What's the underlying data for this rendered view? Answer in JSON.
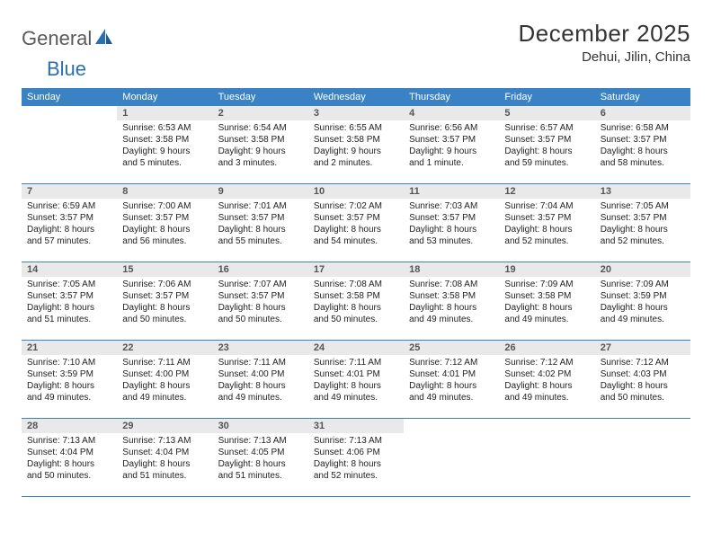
{
  "brand": {
    "text1": "General",
    "text2": "Blue"
  },
  "title": "December 2025",
  "location": "Dehui, Jilin, China",
  "colors": {
    "header_bg": "#3b82c4",
    "header_text": "#ffffff",
    "daynum_bg": "#e9e9e9",
    "daynum_text": "#555555",
    "body_text": "#222222",
    "rule": "#3b82c4",
    "logo_gray": "#5a5a5a",
    "logo_blue": "#2a6fb0"
  },
  "weekdays": [
    "Sunday",
    "Monday",
    "Tuesday",
    "Wednesday",
    "Thursday",
    "Friday",
    "Saturday"
  ],
  "weeks": [
    [
      {
        "n": "",
        "sr": "",
        "ss": "",
        "dl": ""
      },
      {
        "n": "1",
        "sr": "Sunrise: 6:53 AM",
        "ss": "Sunset: 3:58 PM",
        "dl": "Daylight: 9 hours and 5 minutes."
      },
      {
        "n": "2",
        "sr": "Sunrise: 6:54 AM",
        "ss": "Sunset: 3:58 PM",
        "dl": "Daylight: 9 hours and 3 minutes."
      },
      {
        "n": "3",
        "sr": "Sunrise: 6:55 AM",
        "ss": "Sunset: 3:58 PM",
        "dl": "Daylight: 9 hours and 2 minutes."
      },
      {
        "n": "4",
        "sr": "Sunrise: 6:56 AM",
        "ss": "Sunset: 3:57 PM",
        "dl": "Daylight: 9 hours and 1 minute."
      },
      {
        "n": "5",
        "sr": "Sunrise: 6:57 AM",
        "ss": "Sunset: 3:57 PM",
        "dl": "Daylight: 8 hours and 59 minutes."
      },
      {
        "n": "6",
        "sr": "Sunrise: 6:58 AM",
        "ss": "Sunset: 3:57 PM",
        "dl": "Daylight: 8 hours and 58 minutes."
      }
    ],
    [
      {
        "n": "7",
        "sr": "Sunrise: 6:59 AM",
        "ss": "Sunset: 3:57 PM",
        "dl": "Daylight: 8 hours and 57 minutes."
      },
      {
        "n": "8",
        "sr": "Sunrise: 7:00 AM",
        "ss": "Sunset: 3:57 PM",
        "dl": "Daylight: 8 hours and 56 minutes."
      },
      {
        "n": "9",
        "sr": "Sunrise: 7:01 AM",
        "ss": "Sunset: 3:57 PM",
        "dl": "Daylight: 8 hours and 55 minutes."
      },
      {
        "n": "10",
        "sr": "Sunrise: 7:02 AM",
        "ss": "Sunset: 3:57 PM",
        "dl": "Daylight: 8 hours and 54 minutes."
      },
      {
        "n": "11",
        "sr": "Sunrise: 7:03 AM",
        "ss": "Sunset: 3:57 PM",
        "dl": "Daylight: 8 hours and 53 minutes."
      },
      {
        "n": "12",
        "sr": "Sunrise: 7:04 AM",
        "ss": "Sunset: 3:57 PM",
        "dl": "Daylight: 8 hours and 52 minutes."
      },
      {
        "n": "13",
        "sr": "Sunrise: 7:05 AM",
        "ss": "Sunset: 3:57 PM",
        "dl": "Daylight: 8 hours and 52 minutes."
      }
    ],
    [
      {
        "n": "14",
        "sr": "Sunrise: 7:05 AM",
        "ss": "Sunset: 3:57 PM",
        "dl": "Daylight: 8 hours and 51 minutes."
      },
      {
        "n": "15",
        "sr": "Sunrise: 7:06 AM",
        "ss": "Sunset: 3:57 PM",
        "dl": "Daylight: 8 hours and 50 minutes."
      },
      {
        "n": "16",
        "sr": "Sunrise: 7:07 AM",
        "ss": "Sunset: 3:57 PM",
        "dl": "Daylight: 8 hours and 50 minutes."
      },
      {
        "n": "17",
        "sr": "Sunrise: 7:08 AM",
        "ss": "Sunset: 3:58 PM",
        "dl": "Daylight: 8 hours and 50 minutes."
      },
      {
        "n": "18",
        "sr": "Sunrise: 7:08 AM",
        "ss": "Sunset: 3:58 PM",
        "dl": "Daylight: 8 hours and 49 minutes."
      },
      {
        "n": "19",
        "sr": "Sunrise: 7:09 AM",
        "ss": "Sunset: 3:58 PM",
        "dl": "Daylight: 8 hours and 49 minutes."
      },
      {
        "n": "20",
        "sr": "Sunrise: 7:09 AM",
        "ss": "Sunset: 3:59 PM",
        "dl": "Daylight: 8 hours and 49 minutes."
      }
    ],
    [
      {
        "n": "21",
        "sr": "Sunrise: 7:10 AM",
        "ss": "Sunset: 3:59 PM",
        "dl": "Daylight: 8 hours and 49 minutes."
      },
      {
        "n": "22",
        "sr": "Sunrise: 7:11 AM",
        "ss": "Sunset: 4:00 PM",
        "dl": "Daylight: 8 hours and 49 minutes."
      },
      {
        "n": "23",
        "sr": "Sunrise: 7:11 AM",
        "ss": "Sunset: 4:00 PM",
        "dl": "Daylight: 8 hours and 49 minutes."
      },
      {
        "n": "24",
        "sr": "Sunrise: 7:11 AM",
        "ss": "Sunset: 4:01 PM",
        "dl": "Daylight: 8 hours and 49 minutes."
      },
      {
        "n": "25",
        "sr": "Sunrise: 7:12 AM",
        "ss": "Sunset: 4:01 PM",
        "dl": "Daylight: 8 hours and 49 minutes."
      },
      {
        "n": "26",
        "sr": "Sunrise: 7:12 AM",
        "ss": "Sunset: 4:02 PM",
        "dl": "Daylight: 8 hours and 49 minutes."
      },
      {
        "n": "27",
        "sr": "Sunrise: 7:12 AM",
        "ss": "Sunset: 4:03 PM",
        "dl": "Daylight: 8 hours and 50 minutes."
      }
    ],
    [
      {
        "n": "28",
        "sr": "Sunrise: 7:13 AM",
        "ss": "Sunset: 4:04 PM",
        "dl": "Daylight: 8 hours and 50 minutes."
      },
      {
        "n": "29",
        "sr": "Sunrise: 7:13 AM",
        "ss": "Sunset: 4:04 PM",
        "dl": "Daylight: 8 hours and 51 minutes."
      },
      {
        "n": "30",
        "sr": "Sunrise: 7:13 AM",
        "ss": "Sunset: 4:05 PM",
        "dl": "Daylight: 8 hours and 51 minutes."
      },
      {
        "n": "31",
        "sr": "Sunrise: 7:13 AM",
        "ss": "Sunset: 4:06 PM",
        "dl": "Daylight: 8 hours and 52 minutes."
      },
      {
        "n": "",
        "sr": "",
        "ss": "",
        "dl": ""
      },
      {
        "n": "",
        "sr": "",
        "ss": "",
        "dl": ""
      },
      {
        "n": "",
        "sr": "",
        "ss": "",
        "dl": ""
      }
    ]
  ]
}
